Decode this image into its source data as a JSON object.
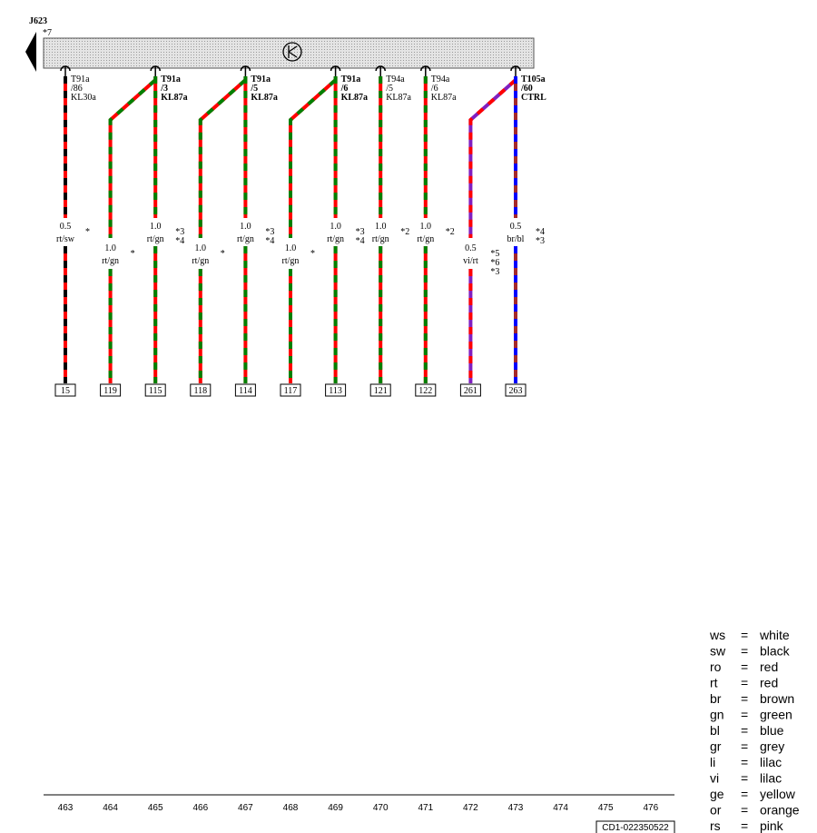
{
  "component": {
    "label": "J623",
    "note": "*7"
  },
  "wires": [
    {
      "connector": [
        "T91a",
        "/86",
        "KL30a"
      ],
      "gauge": "0.5",
      "color_code": "rt/sw",
      "notes": [
        "*"
      ],
      "terminal": "15",
      "colors": [
        "#ff0000",
        "#000000"
      ]
    },
    {
      "connector": null,
      "gauge": "1.0",
      "color_code": "rt/gn",
      "notes": [
        "*"
      ],
      "terminal": "119",
      "colors": [
        "#ff0000",
        "#008000"
      ]
    },
    {
      "connector": [
        "T91a",
        "/3",
        "KL87a"
      ],
      "gauge": "1.0",
      "color_code": "rt/gn",
      "notes": [
        "*3",
        "*4"
      ],
      "terminal": "115",
      "colors": [
        "#ff0000",
        "#008000"
      ]
    },
    {
      "connector": null,
      "gauge": "1.0",
      "color_code": "rt/gn",
      "notes": [
        "*"
      ],
      "terminal": "118",
      "colors": [
        "#ff0000",
        "#008000"
      ]
    },
    {
      "connector": [
        "T91a",
        "/5",
        "KL87a"
      ],
      "gauge": "1.0",
      "color_code": "rt/gn",
      "notes": [
        "*3",
        "*4"
      ],
      "terminal": "114",
      "colors": [
        "#ff0000",
        "#008000"
      ]
    },
    {
      "connector": null,
      "gauge": "1.0",
      "color_code": "rt/gn",
      "notes": [
        "*"
      ],
      "terminal": "117",
      "colors": [
        "#ff0000",
        "#008000"
      ]
    },
    {
      "connector": [
        "T91a",
        "/6",
        "KL87a"
      ],
      "gauge": "1.0",
      "color_code": "rt/gn",
      "notes": [
        "*3",
        "*4"
      ],
      "terminal": "113",
      "colors": [
        "#ff0000",
        "#008000"
      ]
    },
    {
      "connector": [
        "T94a",
        "/5",
        "KL87a"
      ],
      "gauge": "1.0",
      "color_code": "rt/gn",
      "notes": [
        "*2"
      ],
      "terminal": "121",
      "colors": [
        "#ff0000",
        "#008000"
      ]
    },
    {
      "connector": [
        "T94a",
        "/6",
        "KL87a"
      ],
      "gauge": "1.0",
      "color_code": "rt/gn",
      "notes": [
        "*2"
      ],
      "terminal": "122",
      "colors": [
        "#ff0000",
        "#008000"
      ]
    },
    {
      "connector": null,
      "gauge": "0.5",
      "color_code": "vi/rt",
      "notes": [
        "*5",
        "*6",
        "*3"
      ],
      "terminal": "261",
      "colors": [
        "#8020c0",
        "#ff0000"
      ]
    },
    {
      "connector": [
        "T105a",
        "/60",
        "CTRL"
      ],
      "gauge": "0.5",
      "color_code": "br/bl",
      "notes": [
        "*4",
        "*3"
      ],
      "terminal": "263",
      "colors": [
        "#a52a2a",
        "#0000ff"
      ]
    }
  ],
  "ruler": [
    "463",
    "464",
    "465",
    "466",
    "467",
    "468",
    "469",
    "470",
    "471",
    "472",
    "473",
    "474",
    "475",
    "476"
  ],
  "legend": [
    [
      "ws",
      "=",
      "white"
    ],
    [
      "sw",
      "=",
      "black"
    ],
    [
      "ro",
      "=",
      "red"
    ],
    [
      "rt",
      "=",
      "red"
    ],
    [
      "br",
      "=",
      "brown"
    ],
    [
      "gn",
      "=",
      "green"
    ],
    [
      "bl",
      "=",
      "blue"
    ],
    [
      "gr",
      "=",
      "grey"
    ],
    [
      "li",
      "=",
      "lilac"
    ],
    [
      "vi",
      "=",
      "lilac"
    ],
    [
      "ge",
      "=",
      "yellow"
    ],
    [
      "or",
      "=",
      "orange"
    ],
    [
      "rs",
      "=",
      "pink"
    ]
  ],
  "footer": "CD1-022350522"
}
